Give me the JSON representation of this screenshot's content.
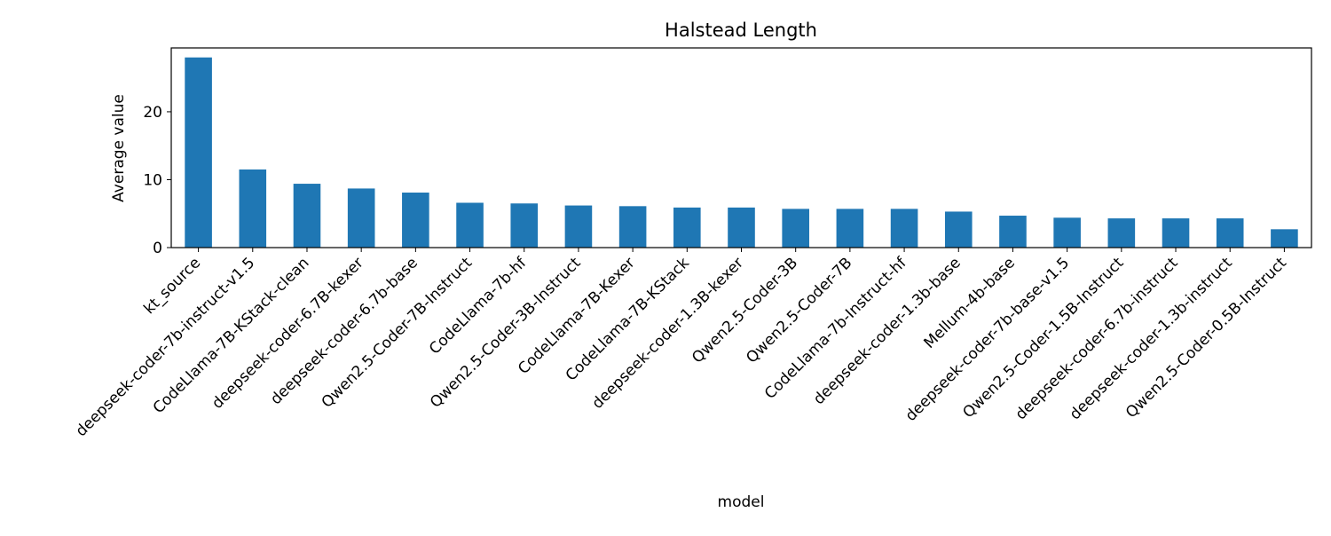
{
  "chart_data": {
    "type": "bar",
    "title": "Halstead Length",
    "xlabel": "model",
    "ylabel": "Average value",
    "ylim": [
      0,
      29.4
    ],
    "yticks": [
      0,
      10,
      20
    ],
    "grid": false,
    "legend": "none",
    "bar_color": "#1f77b4",
    "categories": [
      "kt_source",
      "deepseek-coder-7b-instruct-v1.5",
      "CodeLlama-7B-KStack-clean",
      "deepseek-coder-6.7B-kexer",
      "deepseek-coder-6.7b-base",
      "Qwen2.5-Coder-7B-Instruct",
      "CodeLlama-7b-hf",
      "Qwen2.5-Coder-3B-Instruct",
      "CodeLlama-7B-Kexer",
      "CodeLlama-7B-KStack",
      "deepseek-coder-1.3B-kexer",
      "Qwen2.5-Coder-3B",
      "Qwen2.5-Coder-7B",
      "CodeLlama-7b-Instruct-hf",
      "deepseek-coder-1.3b-base",
      "Mellum-4b-base",
      "deepseek-coder-7b-base-v1.5",
      "Qwen2.5-Coder-1.5B-Instruct",
      "deepseek-coder-6.7b-instruct",
      "deepseek-coder-1.3b-instruct",
      "Qwen2.5-Coder-0.5B-Instruct"
    ],
    "values": [
      28.0,
      11.5,
      9.4,
      8.7,
      8.1,
      6.6,
      6.5,
      6.2,
      6.1,
      5.9,
      5.9,
      5.7,
      5.7,
      5.7,
      5.3,
      4.7,
      4.4,
      4.3,
      4.3,
      4.3,
      2.7
    ]
  }
}
